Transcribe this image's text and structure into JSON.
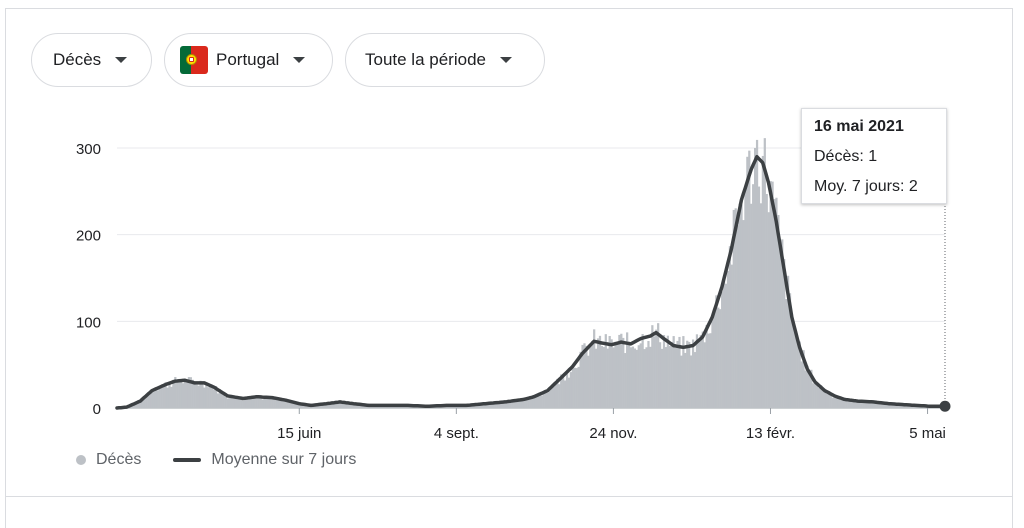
{
  "filters": {
    "metric": "Décès",
    "country": "Portugal",
    "period": "Toute la période"
  },
  "legend": {
    "bars_label": "Décès",
    "line_label": "Moyenne sur 7 jours"
  },
  "tooltip": {
    "date": "16 mai 2021",
    "deaths_line": "Décès: 1",
    "avg_line": "Moy. 7 jours: 2"
  },
  "colors": {
    "bars": "#bdc1c6",
    "line": "#3c4043",
    "grid": "#e8eaed",
    "axis_text": "#202124",
    "flag_green": "#046a38",
    "flag_red": "#da291c"
  },
  "icons": [
    "caret-down-icon",
    "portugal-flag-icon"
  ],
  "chart_data": {
    "type": "bar",
    "title": "",
    "xlabel": "",
    "ylabel": "",
    "ylim": [
      0,
      300
    ],
    "y_ticks": [
      0,
      100,
      200,
      300
    ],
    "x_ticks": [
      {
        "day": 94,
        "label": "15 juin"
      },
      {
        "day": 175,
        "label": "4 sept."
      },
      {
        "day": 256,
        "label": "24 nov."
      },
      {
        "day": 337,
        "label": "13 févr."
      },
      {
        "day": 418,
        "label": "5 mai"
      }
    ],
    "date_range": [
      "2020-03-13",
      "2021-05-16"
    ],
    "avg_keyframes": [
      [
        0,
        0
      ],
      [
        5,
        1
      ],
      [
        12,
        8
      ],
      [
        18,
        20
      ],
      [
        25,
        27
      ],
      [
        30,
        31
      ],
      [
        35,
        32
      ],
      [
        40,
        29
      ],
      [
        45,
        29
      ],
      [
        50,
        24
      ],
      [
        57,
        14
      ],
      [
        65,
        11
      ],
      [
        72,
        13
      ],
      [
        80,
        12
      ],
      [
        87,
        9
      ],
      [
        94,
        5
      ],
      [
        100,
        3
      ],
      [
        108,
        5
      ],
      [
        115,
        7
      ],
      [
        122,
        5
      ],
      [
        130,
        3
      ],
      [
        140,
        3
      ],
      [
        150,
        3
      ],
      [
        160,
        2
      ],
      [
        170,
        3
      ],
      [
        180,
        3
      ],
      [
        190,
        5
      ],
      [
        200,
        7
      ],
      [
        210,
        10
      ],
      [
        215,
        13
      ],
      [
        222,
        20
      ],
      [
        230,
        37
      ],
      [
        235,
        48
      ],
      [
        240,
        63
      ],
      [
        246,
        77
      ],
      [
        250,
        75
      ],
      [
        255,
        73
      ],
      [
        260,
        76
      ],
      [
        265,
        74
      ],
      [
        270,
        80
      ],
      [
        275,
        83
      ],
      [
        278,
        87
      ],
      [
        282,
        80
      ],
      [
        287,
        72
      ],
      [
        292,
        70
      ],
      [
        297,
        72
      ],
      [
        302,
        82
      ],
      [
        307,
        105
      ],
      [
        312,
        140
      ],
      [
        317,
        185
      ],
      [
        322,
        240
      ],
      [
        327,
        275
      ],
      [
        330,
        290
      ],
      [
        333,
        283
      ],
      [
        336,
        260
      ],
      [
        340,
        215
      ],
      [
        344,
        160
      ],
      [
        348,
        105
      ],
      [
        352,
        70
      ],
      [
        356,
        45
      ],
      [
        360,
        30
      ],
      [
        365,
        20
      ],
      [
        370,
        14
      ],
      [
        375,
        10
      ],
      [
        382,
        8
      ],
      [
        390,
        7
      ],
      [
        398,
        5
      ],
      [
        405,
        4
      ],
      [
        412,
        3
      ],
      [
        420,
        2
      ],
      [
        427,
        2
      ]
    ],
    "highlight_day": 427,
    "highlight_value": 2
  }
}
